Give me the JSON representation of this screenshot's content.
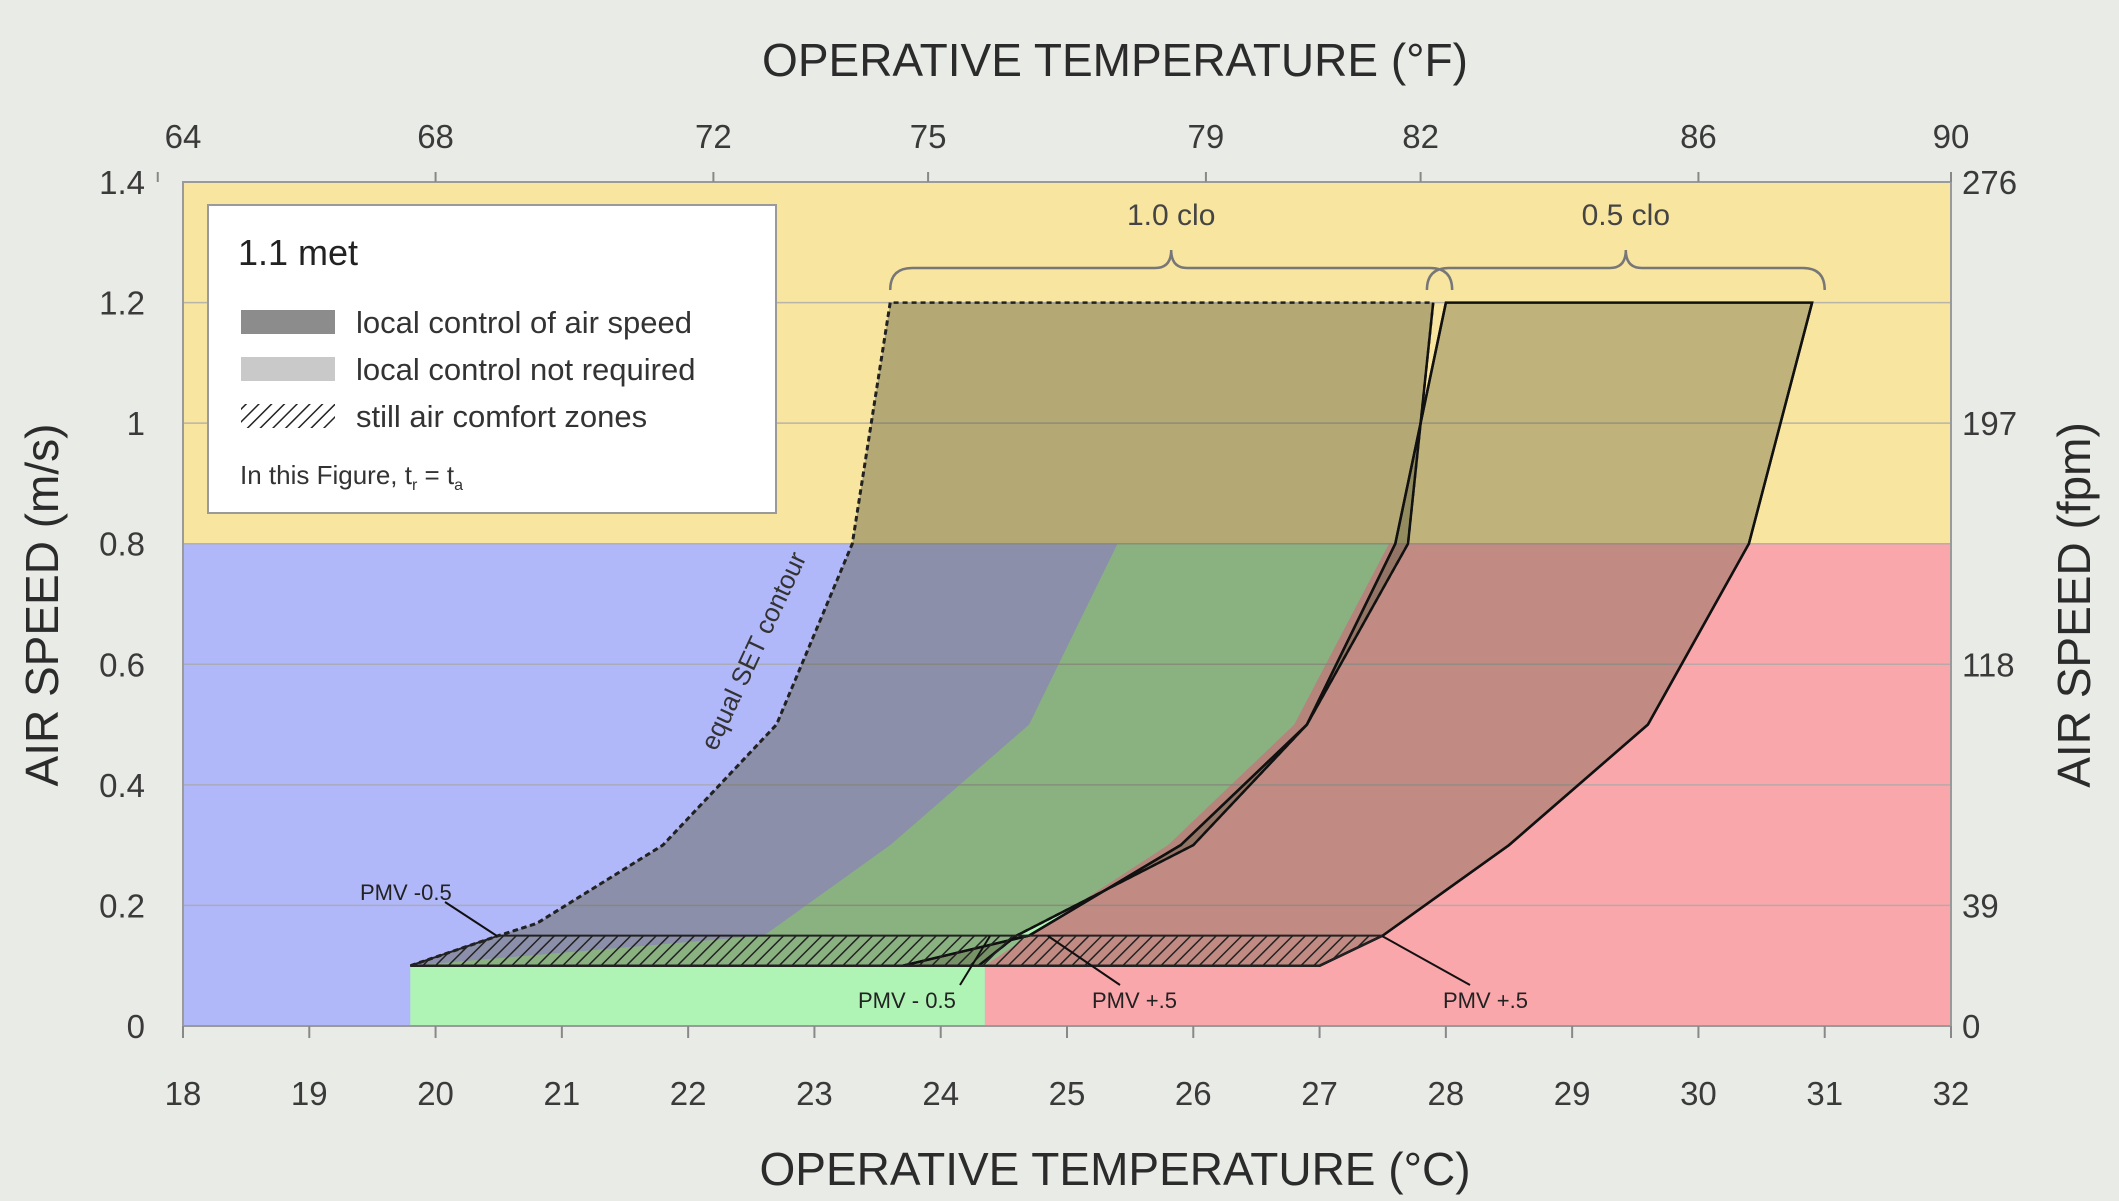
{
  "chart_data": {
    "type": "area",
    "title": "",
    "xlabel": "OPERATIVE TEMPERATURE (°C)",
    "x2label": "OPERATIVE TEMPERATURE (°F)",
    "ylabel": "AIR SPEED (m/s)",
    "y2label": "AIR SPEED (fpm)",
    "xlim": [
      18,
      32
    ],
    "ylim": [
      0,
      1.4
    ],
    "x_ticks": [
      "18",
      "19",
      "20",
      "21",
      "22",
      "23",
      "24",
      "25",
      "26",
      "27",
      "28",
      "29",
      "30",
      "31",
      "32"
    ],
    "x_ticks_values": [
      18,
      19,
      20,
      21,
      22,
      23,
      24,
      25,
      26,
      27,
      28,
      29,
      30,
      31,
      32
    ],
    "x2_ticks": [
      "64",
      "68",
      "72",
      "75",
      "79",
      "82",
      "86",
      "90"
    ],
    "x2_ticks_celsius": [
      17.8,
      20,
      22.2,
      23.9,
      26.1,
      27.8,
      30,
      32.2
    ],
    "y_ticks": [
      "0",
      "0.2",
      "0.4",
      "0.6",
      "0.8",
      "1",
      "1.2",
      "1.4"
    ],
    "y_ticks_values": [
      0,
      0.2,
      0.4,
      0.6,
      0.8,
      1.0,
      1.2,
      1.4
    ],
    "y2_ticks": [
      "0",
      "39",
      "118",
      "197",
      "276"
    ],
    "y2_ticks_ms": [
      0,
      0.2,
      0.6,
      1.0,
      1.4
    ],
    "grid": true,
    "legend_position": "top-left",
    "legend": {
      "title": "1.1 met",
      "items": [
        {
          "label": "local control of air speed",
          "swatch": "dark-gray"
        },
        {
          "label": "local control not required",
          "swatch": "light-gray"
        },
        {
          "label": "still air comfort zones",
          "swatch": "hatched"
        }
      ],
      "note_prefix": "In this Figure, t",
      "note_sub1": "r",
      "note_mid": " = t",
      "note_sub2": "a"
    },
    "background_bands": [
      {
        "name": "cool",
        "color": "#b1b8fa",
        "x": [
          18,
          32
        ],
        "y": [
          0,
          0.8
        ],
        "limit_x_min": 18
      },
      {
        "name": "warm",
        "color": "#faa7ab",
        "y": [
          0,
          0.8
        ]
      },
      {
        "name": "neutral",
        "color": "#b0f4b5"
      },
      {
        "name": "high-air-speed",
        "color": "#f8e59f",
        "y": [
          0.8,
          1.4
        ]
      }
    ],
    "series": [
      {
        "name": "1.0 clo",
        "left_boundary": [
          [
            23.6,
            1.2
          ],
          [
            23.3,
            0.8
          ],
          [
            22.7,
            0.5
          ],
          [
            21.8,
            0.3
          ],
          [
            20.8,
            0.17
          ],
          [
            20.5,
            0.15
          ],
          [
            19.8,
            0.1
          ]
        ],
        "right_boundary": [
          [
            27.9,
            1.2
          ],
          [
            27.7,
            0.8
          ],
          [
            26.9,
            0.5
          ],
          [
            26.0,
            0.3
          ],
          [
            24.6,
            0.15
          ],
          [
            24.3,
            0.1
          ]
        ]
      },
      {
        "name": "0.5 clo",
        "left_boundary": [
          [
            28.0,
            1.2
          ],
          [
            27.6,
            0.8
          ],
          [
            26.9,
            0.5
          ],
          [
            25.9,
            0.3
          ],
          [
            24.7,
            0.15
          ],
          [
            23.7,
            0.1
          ]
        ],
        "right_boundary": [
          [
            30.9,
            1.2
          ],
          [
            30.4,
            0.8
          ],
          [
            29.6,
            0.5
          ],
          [
            28.5,
            0.3
          ],
          [
            27.5,
            0.15
          ],
          [
            27.0,
            0.1
          ]
        ]
      }
    ],
    "still_air_zones": {
      "y": [
        0.1,
        0.15
      ],
      "x": [
        19.8,
        27.5
      ]
    },
    "green_base": {
      "x": [
        19.8,
        24.35
      ],
      "y": [
        0,
        0.1
      ]
    },
    "curve_label": "equal SET contour",
    "annotations": [
      {
        "text": "PMV -0.5",
        "x": 20.3,
        "y": 0.15
      },
      {
        "text": "PMV - 0.5",
        "x": 24.2,
        "y": 0.14
      },
      {
        "text": "PMV +.5",
        "x": 24.8,
        "y": 0.14
      },
      {
        "text": "PMV +.5",
        "x": 27.5,
        "y": 0.14
      }
    ],
    "clo_labels": [
      "1.0 clo",
      "0.5 clo"
    ]
  },
  "colors": {
    "background": "#e9ebe6",
    "plot_border": "#9a9a9a",
    "grid": "#a9a9a9",
    "overlay_dark": "#6b6b4f",
    "overlay_light": "#8f8f70"
  }
}
